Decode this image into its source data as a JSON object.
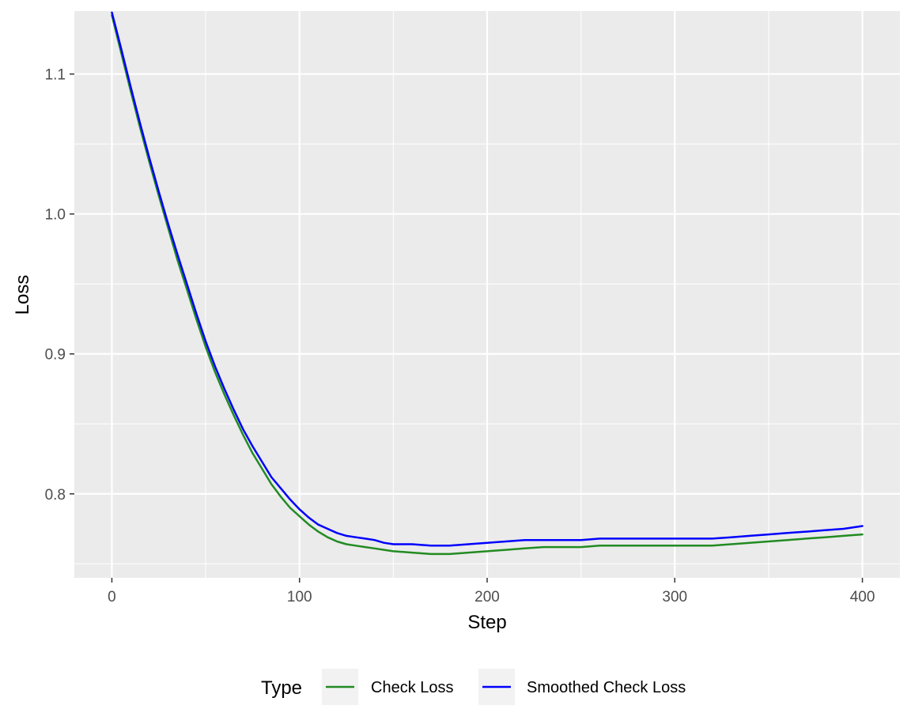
{
  "chart_data": {
    "type": "line",
    "xlabel": "Step",
    "ylabel": "Loss",
    "xlim": [
      -20,
      420
    ],
    "ylim": [
      0.74,
      1.145
    ],
    "x_ticks": [
      0,
      100,
      200,
      300,
      400
    ],
    "x_tick_labels": [
      "0",
      "100",
      "200",
      "300",
      "400"
    ],
    "y_ticks": [
      0.8,
      0.9,
      1.0,
      1.1
    ],
    "y_tick_labels": [
      "0.8",
      "0.9",
      "1.0",
      "1.1"
    ],
    "grid": true,
    "legend": {
      "position": "bottom",
      "title": "Type"
    },
    "series": [
      {
        "name": "Check Loss",
        "color": "#228B22",
        "x": [
          0,
          5,
          10,
          15,
          20,
          25,
          30,
          35,
          40,
          45,
          50,
          55,
          60,
          65,
          70,
          75,
          80,
          85,
          90,
          95,
          100,
          105,
          110,
          115,
          120,
          125,
          130,
          135,
          140,
          145,
          150,
          160,
          170,
          180,
          190,
          200,
          210,
          220,
          230,
          240,
          250,
          260,
          270,
          280,
          290,
          300,
          310,
          320,
          330,
          340,
          350,
          360,
          370,
          380,
          390,
          400
        ],
        "y": [
          1.142,
          1.115,
          1.088,
          1.062,
          1.037,
          1.013,
          0.99,
          0.967,
          0.946,
          0.925,
          0.905,
          0.887,
          0.871,
          0.856,
          0.842,
          0.829,
          0.818,
          0.807,
          0.798,
          0.79,
          0.784,
          0.778,
          0.773,
          0.769,
          0.766,
          0.764,
          0.763,
          0.762,
          0.761,
          0.76,
          0.759,
          0.758,
          0.757,
          0.757,
          0.758,
          0.759,
          0.76,
          0.761,
          0.762,
          0.762,
          0.762,
          0.763,
          0.763,
          0.763,
          0.763,
          0.763,
          0.763,
          0.763,
          0.764,
          0.765,
          0.766,
          0.767,
          0.768,
          0.769,
          0.77,
          0.771
        ]
      },
      {
        "name": "Smoothed Check Loss",
        "color": "#0000FF",
        "x": [
          0,
          5,
          10,
          15,
          20,
          25,
          30,
          35,
          40,
          45,
          50,
          55,
          60,
          65,
          70,
          75,
          80,
          85,
          90,
          95,
          100,
          105,
          110,
          115,
          120,
          125,
          130,
          135,
          140,
          145,
          150,
          160,
          170,
          180,
          190,
          200,
          210,
          220,
          230,
          240,
          250,
          260,
          270,
          280,
          290,
          300,
          310,
          320,
          330,
          340,
          350,
          360,
          370,
          380,
          390,
          400
        ],
        "y": [
          1.144,
          1.118,
          1.091,
          1.065,
          1.04,
          1.016,
          0.993,
          0.971,
          0.95,
          0.929,
          0.909,
          0.891,
          0.875,
          0.86,
          0.846,
          0.834,
          0.823,
          0.812,
          0.804,
          0.796,
          0.789,
          0.783,
          0.778,
          0.775,
          0.772,
          0.77,
          0.769,
          0.768,
          0.767,
          0.765,
          0.764,
          0.764,
          0.763,
          0.763,
          0.764,
          0.765,
          0.766,
          0.767,
          0.767,
          0.767,
          0.767,
          0.768,
          0.768,
          0.768,
          0.768,
          0.768,
          0.768,
          0.768,
          0.769,
          0.77,
          0.771,
          0.772,
          0.773,
          0.774,
          0.775,
          0.777
        ]
      }
    ]
  }
}
